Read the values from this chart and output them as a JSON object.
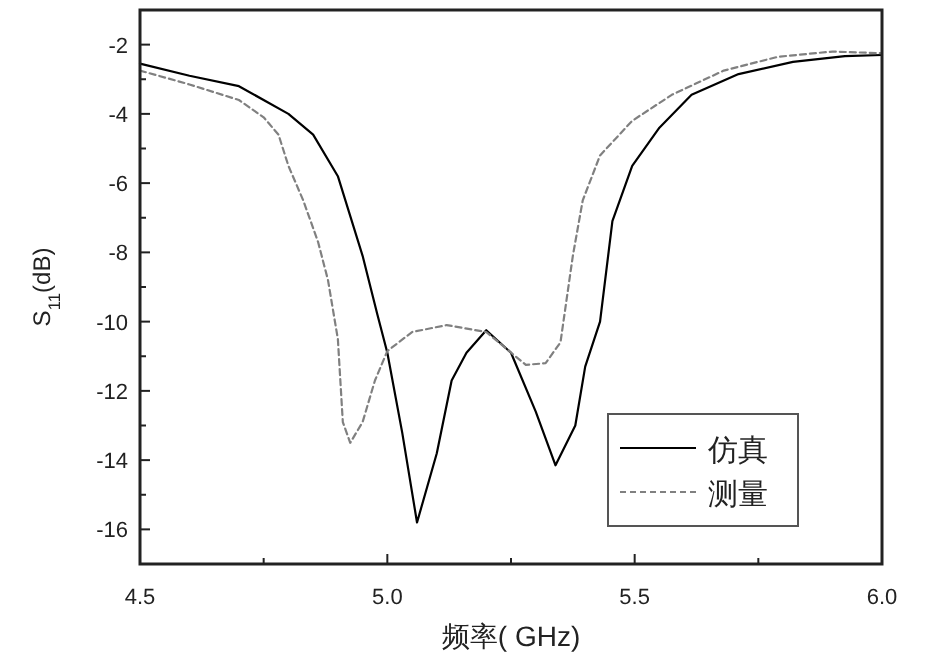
{
  "chart_data": {
    "type": "line",
    "xlabel": "频率( GHz)",
    "ylabel": "S$_{11}$(dB)",
    "xlim": [
      4.5,
      6.0
    ],
    "ylim": [
      -17,
      -1
    ],
    "xticks": [
      {
        "value": 4.5,
        "label": "4.5"
      },
      {
        "value": 4.75,
        "label": null
      },
      {
        "value": 5.0,
        "label": "5.0"
      },
      {
        "value": 5.25,
        "label": null
      },
      {
        "value": 5.5,
        "label": "5.5"
      },
      {
        "value": 5.75,
        "label": null
      },
      {
        "value": 6.0,
        "label": "6.0"
      }
    ],
    "yticks": [
      -2,
      {
        "value": -3,
        "label": null
      },
      -4,
      {
        "value": -5,
        "label": null
      },
      -6,
      {
        "value": -7,
        "label": null
      },
      -8,
      {
        "value": -9,
        "label": null
      },
      -10,
      {
        "value": -11,
        "label": null
      },
      -12,
      {
        "value": -13,
        "label": null
      },
      -14,
      {
        "value": -15,
        "label": null
      },
      -16
    ],
    "grid": false,
    "legend": "bottom right",
    "series": [
      {
        "name": "仿真",
        "color": "#000000",
        "line_style": "solid",
        "x": [
          4.5,
          4.6,
          4.7,
          4.8,
          4.85,
          4.9,
          4.95,
          4.98,
          5.0,
          5.03,
          5.06,
          5.1,
          5.13,
          5.16,
          5.2,
          5.25,
          5.3,
          5.34,
          5.38,
          5.4,
          5.43,
          5.455,
          5.495,
          5.55,
          5.615,
          5.71,
          5.82,
          5.925,
          6.0
        ],
        "values": [
          -2.55,
          -2.9,
          -3.2,
          -4.0,
          -4.6,
          -5.8,
          -8.1,
          -9.8,
          -10.9,
          -13.2,
          -15.8,
          -13.8,
          -11.7,
          -10.9,
          -10.25,
          -10.9,
          -12.6,
          -14.15,
          -13.0,
          -11.3,
          -10.0,
          -7.1,
          -5.5,
          -4.4,
          -3.45,
          -2.85,
          -2.5,
          -2.33,
          -2.3
        ]
      },
      {
        "name": "测量",
        "color": "#808080",
        "line_style": "dashed",
        "x": [
          4.5,
          4.6,
          4.7,
          4.75,
          4.78,
          4.8,
          4.83,
          4.86,
          4.88,
          4.9,
          4.91,
          4.925,
          4.95,
          4.975,
          5.0,
          5.05,
          5.12,
          5.2,
          5.28,
          5.32,
          5.35,
          5.375,
          5.395,
          5.43,
          5.495,
          5.575,
          5.68,
          5.79,
          5.9,
          6.0
        ],
        "values": [
          -2.75,
          -3.15,
          -3.6,
          -4.1,
          -4.6,
          -5.5,
          -6.5,
          -7.7,
          -8.8,
          -10.5,
          -12.9,
          -13.5,
          -12.9,
          -11.7,
          -10.85,
          -10.3,
          -10.1,
          -10.3,
          -11.25,
          -11.2,
          -10.6,
          -8.1,
          -6.5,
          -5.2,
          -4.2,
          -3.45,
          -2.75,
          -2.35,
          -2.2,
          -2.25
        ]
      }
    ]
  }
}
